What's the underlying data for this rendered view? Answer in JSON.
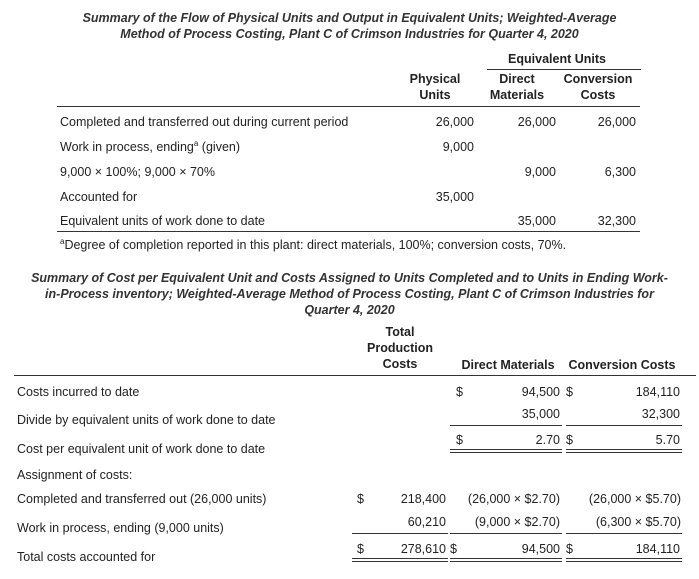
{
  "table1": {
    "title_line1": "Summary of the Flow of Physical Units and Output in Equivalent Units; Weighted-Average",
    "title_line2": "Method of Process Costing, Plant C of Crimson Industries for Quarter 4, 2020",
    "equiv_units_header": "Equivalent Units",
    "col_physical_1": "Physical",
    "col_physical_2": "Units",
    "col_dm_1": "Direct",
    "col_dm_2": "Materials",
    "col_cc_1": "Conversion",
    "col_cc_2": "Costs",
    "rows": [
      {
        "label": "Completed and transferred out during current period",
        "physical": "26,000",
        "dm": "26,000",
        "cc": "26,000"
      },
      {
        "label": "Work in process, ending",
        "sup": "a",
        "label_suffix": " (given)",
        "physical": "9,000",
        "dm": "",
        "cc": ""
      },
      {
        "label": "9,000 × 100%; 9,000 × 70%",
        "physical": "",
        "dm": "9,000",
        "cc": "6,300"
      },
      {
        "label": "Accounted for",
        "physical": "35,000",
        "dm": "",
        "cc": ""
      },
      {
        "label": "Equivalent units of work done to date",
        "physical": "",
        "dm": "35,000",
        "cc": "32,300"
      }
    ],
    "footnote_sup": "a",
    "footnote": "Degree of completion reported in this plant: direct materials, 100%; conversion costs, 70%."
  },
  "table2": {
    "title_line1": "Summary of Cost per Equivalent Unit and Costs Assigned to Units Completed and to Units in Ending Work-",
    "title_line2": "in-Process inventory; Weighted-Average Method of Process Costing, Plant C of Crimson Industries for",
    "title_line3": "Quarter 4, 2020",
    "col_total_1": "Total",
    "col_total_2": "Production",
    "col_total_3": "Costs",
    "col_dm": "Direct Materials",
    "col_cc": "Conversion Costs",
    "rows": {
      "costs_incurred": {
        "label": "Costs incurred to date",
        "dm_sym": "$",
        "dm": "94,500",
        "cc_sym": "$",
        "cc": "184,110"
      },
      "divide": {
        "label": "Divide by equivalent units of work done to date",
        "dm": "35,000",
        "cc": "32,300"
      },
      "cost_per_unit": {
        "label": "Cost per equivalent unit of work done to date",
        "dm_sym": "$",
        "dm": "2.70",
        "cc_sym": "$",
        "cc": "5.70"
      },
      "assignment": {
        "label": "Assignment of costs:"
      },
      "completed": {
        "label": "Completed and transferred out (26,000 units)",
        "total_sym": "$",
        "total": "218,400",
        "dm": "(26,000 × $2.70)",
        "cc": "(26,000 × $5.70)"
      },
      "wip": {
        "label": "Work in process, ending (9,000 units)",
        "total": "60,210",
        "dm": "(9,000 × $2.70)",
        "cc": "(6,300 × $5.70)"
      },
      "total": {
        "label": "Total costs accounted for",
        "total_sym": "$",
        "total": "278,610",
        "dm_sym": "$",
        "dm": "94,500",
        "cc_sym": "$",
        "cc": "184,110"
      }
    }
  }
}
